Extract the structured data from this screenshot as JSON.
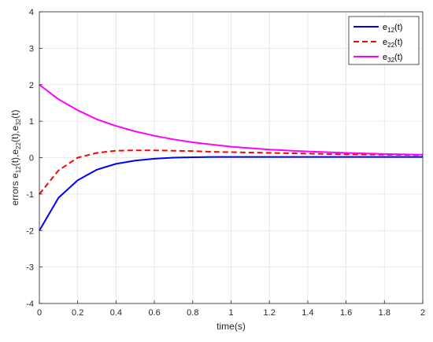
{
  "chart_data": {
    "type": "line",
    "title": "",
    "xlabel": "time(s)",
    "ylabel": "errors e12(t),e22(t),e32(t)",
    "xlim": [
      0,
      2
    ],
    "ylim": [
      -4,
      4
    ],
    "x_ticks": [
      "0",
      "0.2",
      "0.4",
      "0.6",
      "0.8",
      "1",
      "1.2",
      "1.4",
      "1.6",
      "1.8",
      "2"
    ],
    "y_ticks": [
      "4",
      "3",
      "2",
      "1",
      "0",
      "-1",
      "-2",
      "-3",
      "-4"
    ],
    "grid": true,
    "legend_position": "top-right",
    "x": [
      0,
      0.1,
      0.2,
      0.3,
      0.4,
      0.5,
      0.6,
      0.7,
      0.8,
      0.9,
      1.0,
      1.2,
      1.4,
      1.6,
      1.8,
      2.0
    ],
    "series": [
      {
        "name": "e12(t)",
        "color": "#0000ff",
        "style": "solid",
        "values": [
          -2.0,
          -1.1,
          -0.62,
          -0.33,
          -0.17,
          -0.08,
          -0.03,
          0.0,
          0.01,
          0.02,
          0.02,
          0.02,
          0.02,
          0.02,
          0.02,
          0.02
        ]
      },
      {
        "name": "e22(t)",
        "color": "#ff0000",
        "style": "dashed",
        "values": [
          -1.0,
          -0.35,
          0.0,
          0.13,
          0.19,
          0.2,
          0.2,
          0.19,
          0.18,
          0.16,
          0.15,
          0.13,
          0.11,
          0.09,
          0.08,
          0.07
        ]
      },
      {
        "name": "e32(t)",
        "color": "#ff00ff",
        "style": "solid",
        "values": [
          2.0,
          1.6,
          1.3,
          1.05,
          0.87,
          0.72,
          0.6,
          0.5,
          0.42,
          0.36,
          0.3,
          0.22,
          0.17,
          0.13,
          0.1,
          0.08
        ]
      }
    ],
    "legend": {
      "entries": [
        {
          "base": "e",
          "sub": "12",
          "suffix": "(t)"
        },
        {
          "base": "e",
          "sub": "22",
          "suffix": "(t)"
        },
        {
          "base": "e",
          "sub": "32",
          "suffix": "(t)"
        }
      ]
    },
    "ylabel_parts": {
      "prefix": "errors e",
      "parts": [
        {
          "sub": "12",
          "after": "(t),e"
        },
        {
          "sub": "22",
          "after": "(t),e"
        },
        {
          "sub": "32",
          "after": "(t)"
        }
      ]
    }
  }
}
